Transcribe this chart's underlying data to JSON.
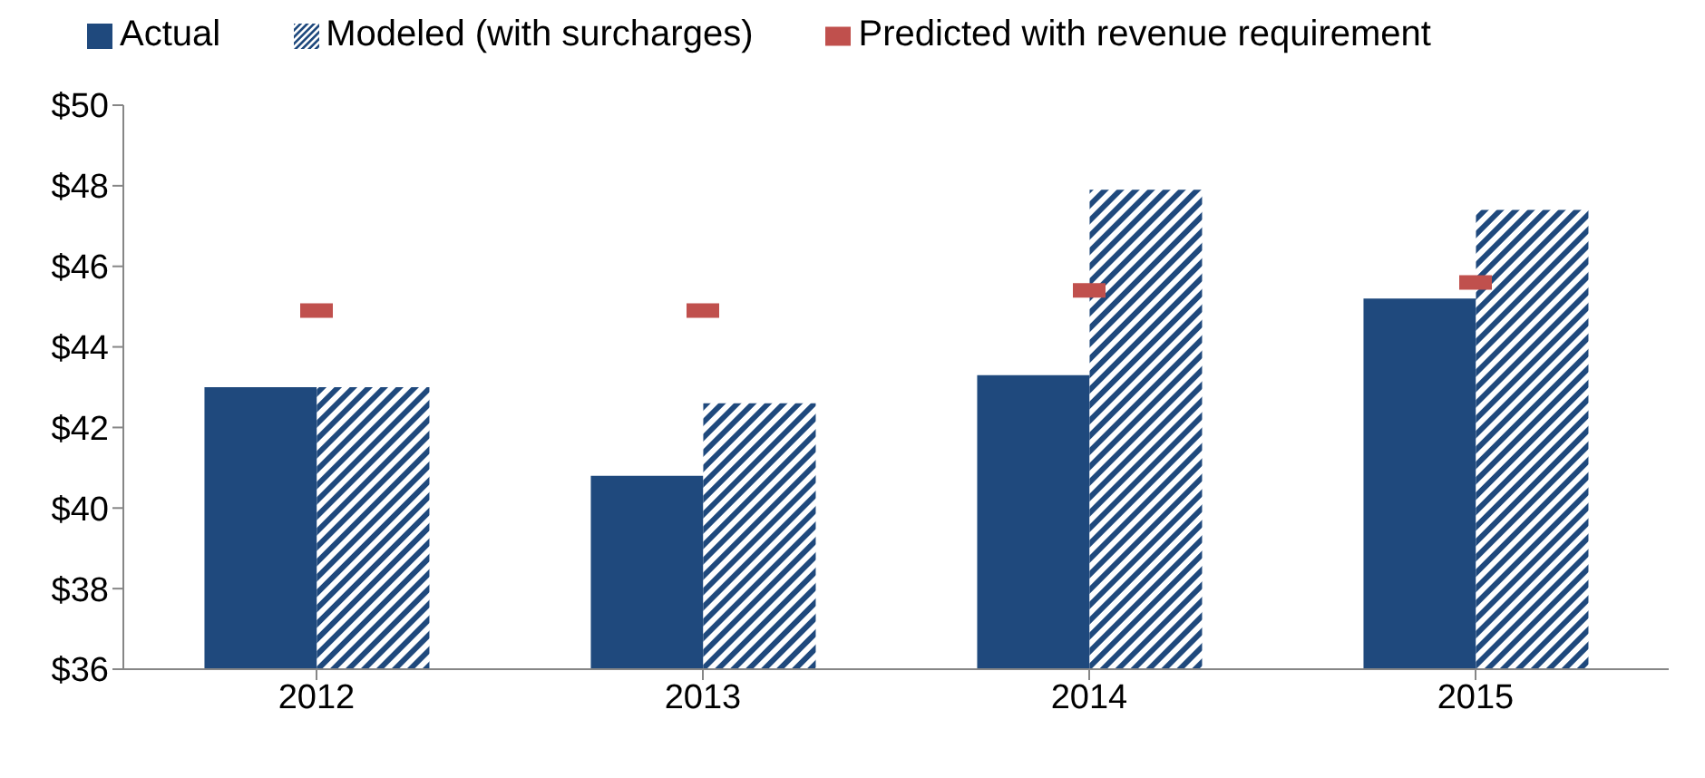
{
  "chart_data": {
    "type": "bar",
    "categories": [
      "2012",
      "2013",
      "2014",
      "2015"
    ],
    "series": [
      {
        "name": "Actual",
        "type": "bar",
        "color": "#1f497d",
        "values": [
          43.0,
          40.8,
          43.3,
          45.2
        ]
      },
      {
        "name": "Modeled (with surcharges)",
        "type": "bar",
        "color": "#1f497d",
        "values": [
          43.0,
          42.6,
          47.9,
          47.4
        ]
      },
      {
        "name": "Predicted with revenue requirement",
        "type": "scatter",
        "color": "#c0504d",
        "values": [
          44.9,
          44.9,
          45.4,
          45.6
        ]
      }
    ],
    "ylim": [
      36,
      50
    ],
    "yticks": [
      {
        "value": 36,
        "label": "$36"
      },
      {
        "value": 38,
        "label": "$38"
      },
      {
        "value": 40,
        "label": "$40"
      },
      {
        "value": 42,
        "label": "$42"
      },
      {
        "value": 44,
        "label": "$44"
      },
      {
        "value": 46,
        "label": "$46"
      },
      {
        "value": 48,
        "label": "$48"
      },
      {
        "value": 50,
        "label": "$50"
      }
    ],
    "grid": false,
    "legend": "top"
  }
}
